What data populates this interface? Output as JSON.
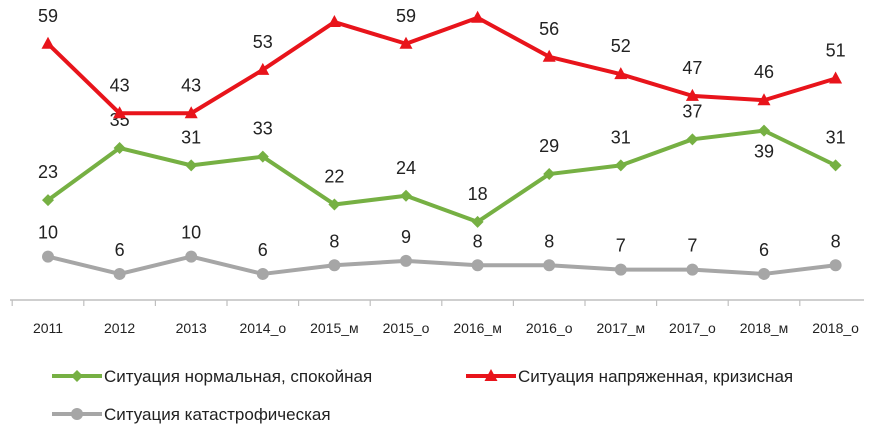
{
  "chart_data": {
    "type": "line",
    "title": "",
    "xlabel": "",
    "ylabel": "",
    "categories": [
      "2011",
      "2012",
      "2013",
      "2014_о",
      "2015_м",
      "2015_о",
      "2016_м",
      "2016_о",
      "2017_м",
      "2017_о",
      "2018_м",
      "2018_о"
    ],
    "ylim": [
      0,
      70
    ],
    "grid": false,
    "legend_position": "bottom",
    "series": [
      {
        "name": "Ситуация нормальная, спокойная",
        "color": "#76b043",
        "marker": "diamond",
        "values": [
          23,
          35,
          31,
          33,
          22,
          24,
          18,
          29,
          31,
          37,
          39,
          31
        ]
      },
      {
        "name": "Ситуация напряженная, кризисная",
        "color": "#e8141b",
        "marker": "triangle",
        "values": [
          59,
          43,
          43,
          53,
          64,
          59,
          65,
          56,
          52,
          47,
          46,
          51
        ]
      },
      {
        "name": "Ситуация катастрофическая",
        "color": "#a6a6a6",
        "marker": "circle",
        "values": [
          10,
          6,
          10,
          6,
          8,
          9,
          8,
          8,
          7,
          7,
          6,
          8
        ]
      }
    ]
  }
}
